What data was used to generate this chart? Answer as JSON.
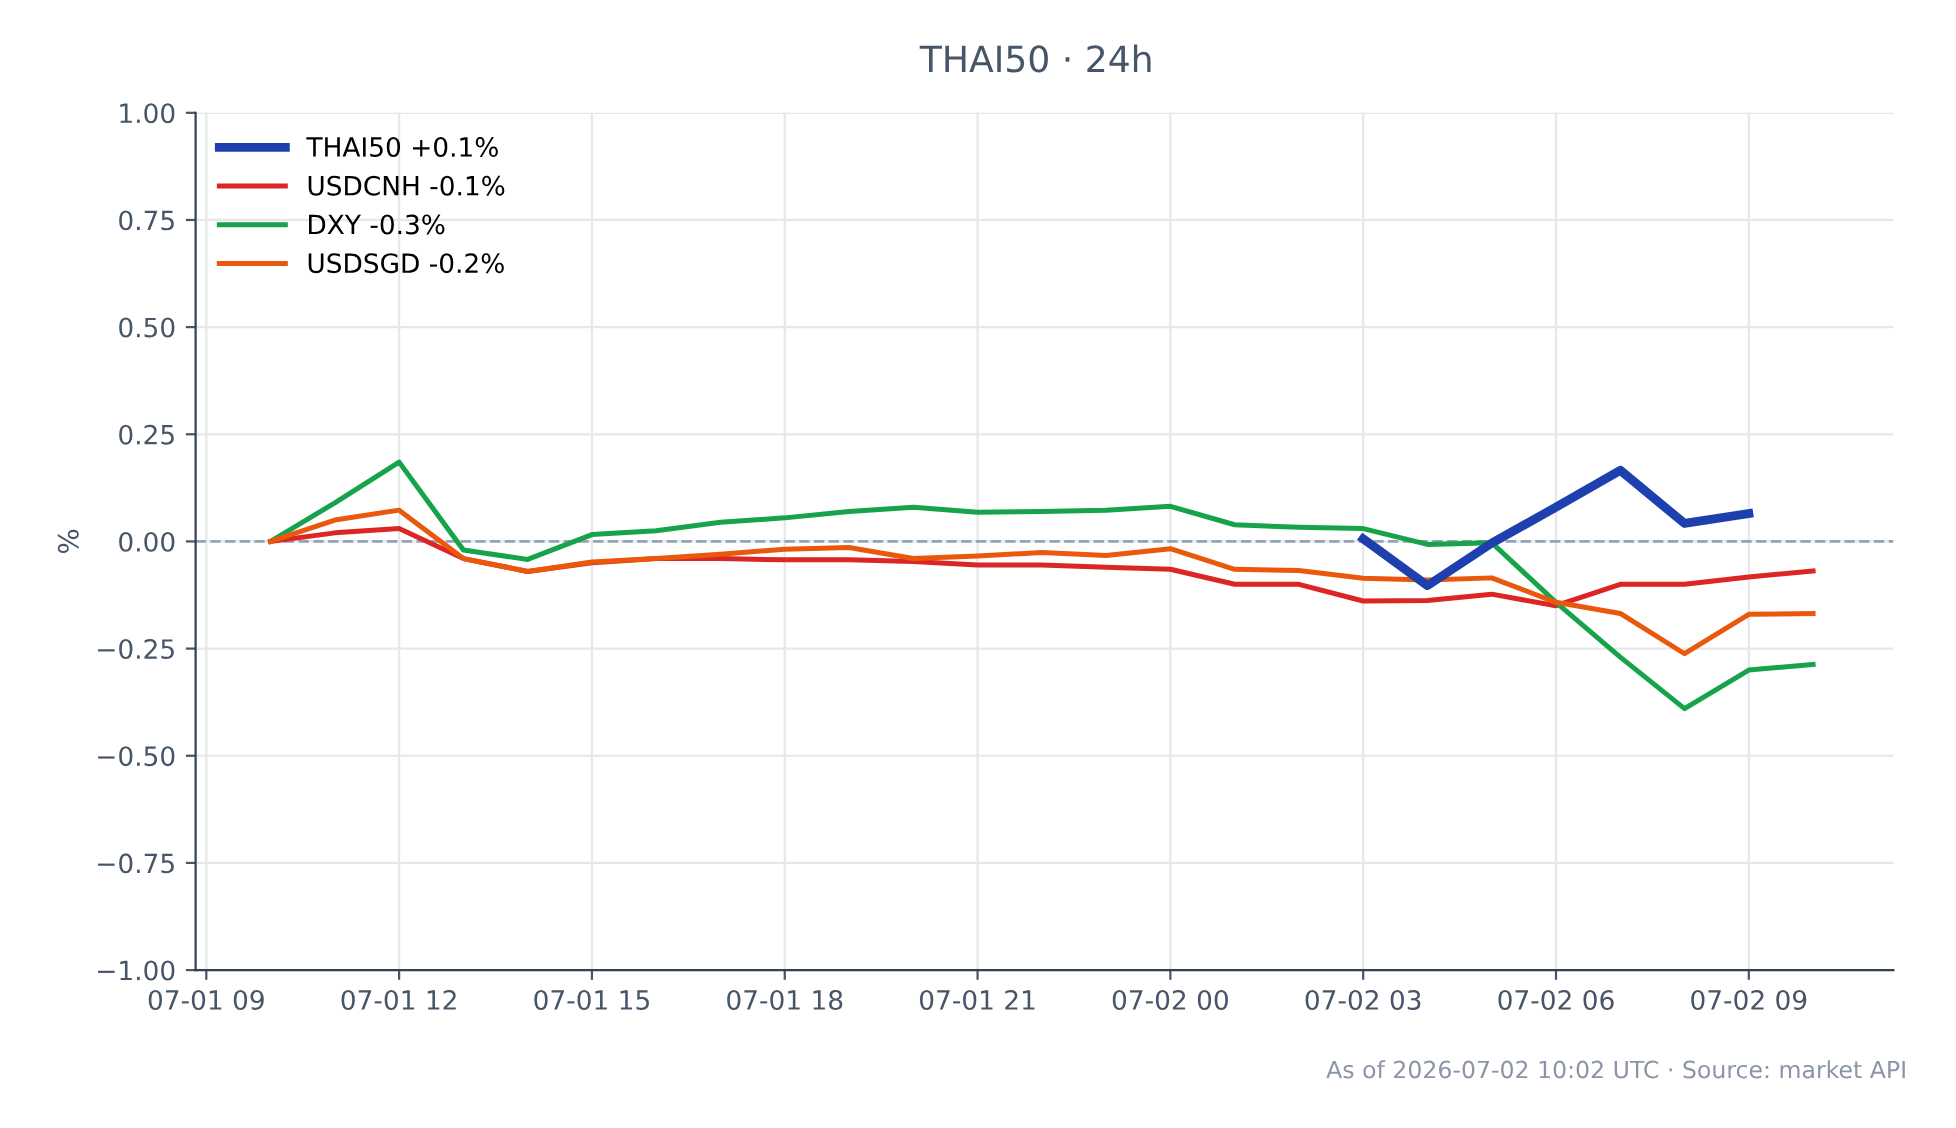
{
  "chart_data": {
    "type": "line",
    "title": "THAI50 · 24h",
    "ylabel": "%",
    "annotations": [
      "As of 2026-07-02 10:02 UTC · Source: market API"
    ],
    "xlim": [
      "2026-07-01T08:50",
      "2026-07-02T11:15"
    ],
    "xticks": [
      {
        "value": "2026-07-01T09:00",
        "label": "07-01 09"
      },
      {
        "value": "2026-07-01T12:00",
        "label": "07-01 12"
      },
      {
        "value": "2026-07-01T15:00",
        "label": "07-01 15"
      },
      {
        "value": "2026-07-01T18:00",
        "label": "07-01 18"
      },
      {
        "value": "2026-07-01T21:00",
        "label": "07-01 21"
      },
      {
        "value": "2026-07-02T00:00",
        "label": "07-02 00"
      },
      {
        "value": "2026-07-02T03:00",
        "label": "07-02 03"
      },
      {
        "value": "2026-07-02T06:00",
        "label": "07-02 06"
      },
      {
        "value": "2026-07-02T09:00",
        "label": "07-02 09"
      }
    ],
    "ylim": [
      -1.0,
      1.0
    ],
    "yticks": [
      {
        "value": -1.0,
        "label": "−1.00"
      },
      {
        "value": -0.75,
        "label": "−0.75"
      },
      {
        "value": -0.5,
        "label": "−0.50"
      },
      {
        "value": -0.25,
        "label": "−0.25"
      },
      {
        "value": 0,
        "label": "0.00"
      },
      {
        "value": 0.25,
        "label": "0.25"
      },
      {
        "value": 0.5,
        "label": "0.50"
      },
      {
        "value": 0.75,
        "label": "0.75"
      },
      {
        "value": 1.0,
        "label": "1.00"
      }
    ],
    "grid": true,
    "legend": "top left",
    "marker": "none",
    "line_style": "solid",
    "ref_lines": [
      {
        "axis": "y",
        "value": 0,
        "color": "#94a3b8",
        "line_style": "dashed"
      }
    ],
    "series": [
      {
        "name": "THAI50 +0.1%",
        "color": "#1e40af",
        "x": [
          "2026-07-02T03:00",
          "2026-07-02T04:00",
          "2026-07-02T05:00",
          "2026-07-02T06:00",
          "2026-07-02T07:00",
          "2026-07-02T08:00",
          "2026-07-02T09:00"
        ],
        "values": [
          0.006,
          -0.103,
          -0.004,
          0.08,
          0.166,
          0.042,
          0.065
        ]
      },
      {
        "name": "USDCNH -0.1%",
        "color": "#dc2626",
        "values": [
          0,
          0.02,
          0.03,
          -0.04,
          -0.07,
          -0.05,
          -0.04,
          -0.04,
          -0.043,
          -0.043,
          -0.047,
          -0.055,
          -0.055,
          -0.06,
          -0.065,
          -0.1,
          -0.1,
          -0.139,
          -0.138,
          -0.123,
          -0.15,
          -0.1,
          -0.1,
          -0.083,
          -0.069
        ]
      },
      {
        "name": "DXY -0.3%",
        "color": "#16a34a",
        "values": [
          0,
          0.09,
          0.185,
          -0.02,
          -0.042,
          0.016,
          0.025,
          0.045,
          0.055,
          0.07,
          0.08,
          0.068,
          0.07,
          0.073,
          0.082,
          0.039,
          0.033,
          0.03,
          -0.007,
          -0.003,
          -0.142,
          -0.27,
          -0.39,
          -0.3,
          -0.287
        ]
      },
      {
        "name": "USDSGD -0.2%",
        "color": "#ea580c",
        "values": [
          0,
          0.05,
          0.073,
          -0.04,
          -0.07,
          -0.048,
          -0.04,
          -0.03,
          -0.018,
          -0.014,
          -0.04,
          -0.034,
          -0.026,
          -0.033,
          -0.017,
          -0.065,
          -0.068,
          -0.086,
          -0.09,
          -0.085,
          -0.142,
          -0.168,
          -0.262,
          -0.17,
          -0.168
        ]
      }
    ],
    "x": [
      "2026-07-01T10:00",
      "2026-07-01T11:00",
      "2026-07-01T12:00",
      "2026-07-01T13:00",
      "2026-07-01T14:00",
      "2026-07-01T15:00",
      "2026-07-01T16:00",
      "2026-07-01T17:00",
      "2026-07-01T18:00",
      "2026-07-01T19:00",
      "2026-07-01T20:00",
      "2026-07-01T21:00",
      "2026-07-01T22:00",
      "2026-07-01T23:00",
      "2026-07-02T00:00",
      "2026-07-02T01:00",
      "2026-07-02T02:00",
      "2026-07-02T03:00",
      "2026-07-02T04:00",
      "2026-07-02T05:00",
      "2026-07-02T06:00",
      "2026-07-02T07:00",
      "2026-07-02T08:00",
      "2026-07-02T09:00",
      "2026-07-02T10:00"
    ]
  }
}
